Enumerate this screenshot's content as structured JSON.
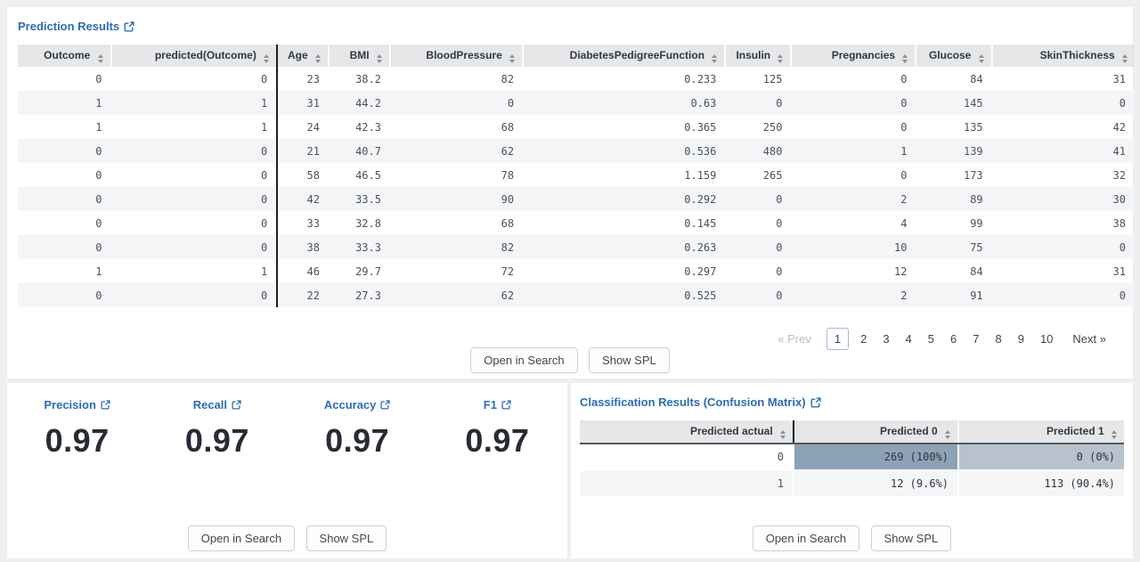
{
  "colors": {
    "link_blue": "#2a6db5",
    "header_bg": "#e5e7e9",
    "stripe_bg": "#f4f5f7",
    "cm_dark_cell": "#8da2b5",
    "cm_light_cell": "#b7c2cc",
    "page_bg": "#edeff0"
  },
  "prediction_panel": {
    "title": "Prediction Results",
    "table": {
      "columns": [
        "Outcome",
        "predicted(Outcome)",
        "Age",
        "BMI",
        "BloodPressure",
        "DiabetesPedigreeFunction",
        "Insulin",
        "Pregnancies",
        "Glucose",
        "SkinThickness"
      ],
      "rows": [
        [
          "0",
          "0",
          "23",
          "38.2",
          "82",
          "0.233",
          "125",
          "0",
          "84",
          "31"
        ],
        [
          "1",
          "1",
          "31",
          "44.2",
          "0",
          "0.63",
          "0",
          "0",
          "145",
          "0"
        ],
        [
          "1",
          "1",
          "24",
          "42.3",
          "68",
          "0.365",
          "250",
          "0",
          "135",
          "42"
        ],
        [
          "0",
          "0",
          "21",
          "40.7",
          "62",
          "0.536",
          "480",
          "1",
          "139",
          "41"
        ],
        [
          "0",
          "0",
          "58",
          "46.5",
          "78",
          "1.159",
          "265",
          "0",
          "173",
          "32"
        ],
        [
          "0",
          "0",
          "42",
          "33.5",
          "90",
          "0.292",
          "0",
          "2",
          "89",
          "30"
        ],
        [
          "0",
          "0",
          "33",
          "32.8",
          "68",
          "0.145",
          "0",
          "4",
          "99",
          "38"
        ],
        [
          "0",
          "0",
          "38",
          "33.3",
          "82",
          "0.263",
          "0",
          "10",
          "75",
          "0"
        ],
        [
          "1",
          "1",
          "46",
          "29.7",
          "72",
          "0.297",
          "0",
          "12",
          "84",
          "31"
        ],
        [
          "0",
          "0",
          "22",
          "27.3",
          "62",
          "0.525",
          "0",
          "2",
          "91",
          "0"
        ]
      ]
    },
    "pagination": {
      "prev_label": "« Prev",
      "pages": [
        "1",
        "2",
        "3",
        "4",
        "5",
        "6",
        "7",
        "8",
        "9",
        "10"
      ],
      "current_page": "1",
      "next_label": "Next »"
    },
    "buttons": {
      "open_in_search": "Open in Search",
      "show_spl": "Show SPL"
    }
  },
  "metrics_panel": {
    "metrics": [
      {
        "label": "Precision",
        "value": "0.97"
      },
      {
        "label": "Recall",
        "value": "0.97"
      },
      {
        "label": "Accuracy",
        "value": "0.97"
      },
      {
        "label": "F1",
        "value": "0.97"
      }
    ],
    "buttons": {
      "open_in_search": "Open in Search",
      "show_spl": "Show SPL"
    }
  },
  "confusion_panel": {
    "title": "Classification Results (Confusion Matrix)",
    "table": {
      "columns": [
        "Predicted actual",
        "Predicted 0",
        "Predicted 1"
      ],
      "rows": [
        {
          "label": "0",
          "cells": [
            {
              "text": "269 (100%)",
              "shade": "dark"
            },
            {
              "text": "0 (0%)",
              "shade": "light"
            }
          ]
        },
        {
          "label": "1",
          "cells": [
            {
              "text": "12 (9.6%)",
              "shade": "light"
            },
            {
              "text": "113 (90.4%)",
              "shade": "dark"
            }
          ]
        }
      ]
    },
    "buttons": {
      "open_in_search": "Open in Search",
      "show_spl": "Show SPL"
    }
  }
}
